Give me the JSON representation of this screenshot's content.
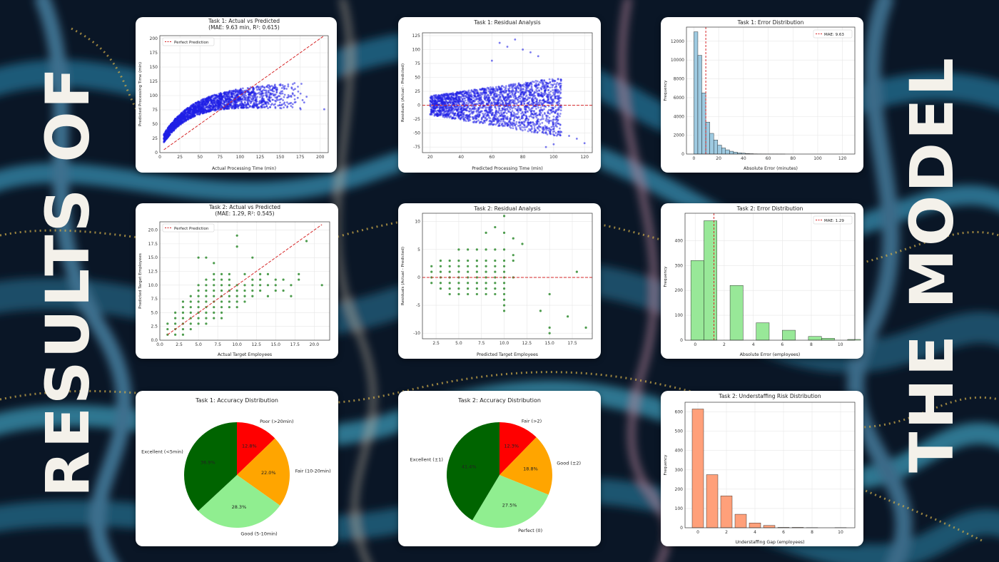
{
  "page": {
    "left_title": "RESULTS OF",
    "right_title": "THE MODEL"
  },
  "chart_data": [
    {
      "id": "t1-avp",
      "type": "scatter",
      "title": "Task 1: Actual vs Predicted",
      "subtitle": "(MAE: 9.63 min, R²: 0.615)",
      "xlabel": "Actual Processing Time (min)",
      "ylabel": "Predicted Processing Time (min)",
      "xlim": [
        0,
        210
      ],
      "ylim": [
        0,
        205
      ],
      "xticks": [
        0,
        25,
        50,
        75,
        100,
        125,
        150,
        175,
        200
      ],
      "yticks": [
        0,
        25,
        50,
        75,
        100,
        125,
        150,
        175,
        200
      ],
      "grid": true,
      "legend": "top-left",
      "color": "#1f1fe6",
      "series": [
        {
          "name": "Perfect Prediction",
          "type": "line",
          "style": "dashed",
          "color": "#d62728",
          "x": [
            5,
            205
          ],
          "y": [
            5,
            205
          ]
        }
      ],
      "cloud": {
        "x_min": 5,
        "x_max": 180,
        "y_base": 20,
        "y_top": 105,
        "spread": 12
      },
      "points": [
        [
          168,
          100
        ],
        [
          172,
          96
        ],
        [
          175,
          78
        ],
        [
          178,
          92
        ],
        [
          180,
          88
        ],
        [
          183,
          98
        ],
        [
          205,
          76
        ]
      ]
    },
    {
      "id": "t1-res",
      "type": "scatter",
      "title": "Task 1: Residual Analysis",
      "xlabel": "Predicted Processing Time (min)",
      "ylabel": "Residuals (Actual - Predicted)",
      "xlim": [
        15,
        125
      ],
      "ylim": [
        -85,
        130
      ],
      "xticks": [
        20,
        40,
        60,
        80,
        100,
        120
      ],
      "yticks": [
        -75,
        -50,
        -25,
        0,
        25,
        50,
        75,
        100,
        125
      ],
      "grid": true,
      "color": "#1f1fe6",
      "reference_line": {
        "y": 0,
        "color": "#d62728",
        "style": "dashed"
      },
      "cloud": {
        "x_min": 20,
        "x_max": 105,
        "res_min": -25,
        "res_max": 40
      },
      "points": [
        [
          65,
          112
        ],
        [
          70,
          105
        ],
        [
          75,
          118
        ],
        [
          80,
          100
        ],
        [
          85,
          95
        ],
        [
          90,
          88
        ],
        [
          60,
          80
        ],
        [
          110,
          -55
        ],
        [
          115,
          -60
        ],
        [
          100,
          -70
        ],
        [
          95,
          -75
        ],
        [
          120,
          -68
        ],
        [
          105,
          -48
        ]
      ]
    },
    {
      "id": "t1-err",
      "type": "bar",
      "title": "Task 1: Error Distribution",
      "xlabel": "Absolute Error (minutes)",
      "ylabel": "Frequency",
      "xlim": [
        -6,
        130
      ],
      "ylim": [
        0,
        13500
      ],
      "xticks": [
        0,
        20,
        40,
        60,
        80,
        100,
        120
      ],
      "yticks": [
        0,
        2000,
        4000,
        6000,
        8000,
        10000,
        12000
      ],
      "bin_start": 0,
      "bin_width": 3.2,
      "values": [
        13000,
        10500,
        6500,
        3400,
        2200,
        1500,
        950,
        650,
        450,
        300,
        200,
        130,
        90,
        60,
        40,
        25,
        15,
        10,
        6,
        4,
        3,
        2,
        1
      ],
      "color": "#9ecae1",
      "edge": "#111111",
      "mean_line": {
        "x": 9.63,
        "label": "MAE: 9.63",
        "color": "#d62728"
      },
      "legend": "top-right",
      "grid": true
    },
    {
      "id": "t2-avp",
      "type": "scatter",
      "title": "Task 2: Actual vs Predicted",
      "subtitle": "(MAE: 1.29, R²: 0.545)",
      "xlabel": "Actual Target Employees",
      "ylabel": "Predicted Target Employees",
      "xlim": [
        0,
        22
      ],
      "ylim": [
        0,
        21.5
      ],
      "xticks": [
        0.0,
        2.5,
        5.0,
        7.5,
        10.0,
        12.5,
        15.0,
        17.5,
        20.0
      ],
      "yticks": [
        0.0,
        2.5,
        5.0,
        7.5,
        10.0,
        12.5,
        15.0,
        17.5,
        20.0
      ],
      "tick_labels": [
        "0.0",
        "2.5",
        "5.0",
        "7.5",
        "10.0",
        "12.5",
        "15.0",
        "17.5",
        "20.0"
      ],
      "grid": true,
      "legend": "top-left",
      "color": "#2e8b2e",
      "series": [
        {
          "name": "Perfect Prediction",
          "type": "line",
          "style": "dashed",
          "color": "#d62728",
          "x": [
            1,
            21
          ],
          "y": [
            1,
            21
          ]
        }
      ],
      "points": [
        [
          1,
          1
        ],
        [
          1,
          2
        ],
        [
          2,
          1
        ],
        [
          2,
          2
        ],
        [
          2,
          3
        ],
        [
          1,
          3
        ],
        [
          3,
          2
        ],
        [
          3,
          3
        ],
        [
          2,
          4
        ],
        [
          3,
          4
        ],
        [
          4,
          3
        ],
        [
          3,
          5
        ],
        [
          4,
          4
        ],
        [
          4,
          5
        ],
        [
          5,
          4
        ],
        [
          4,
          6
        ],
        [
          5,
          5
        ],
        [
          5,
          6
        ],
        [
          6,
          5
        ],
        [
          5,
          7
        ],
        [
          6,
          6
        ],
        [
          6,
          7
        ],
        [
          7,
          6
        ],
        [
          7,
          7
        ],
        [
          6,
          8
        ],
        [
          7,
          8
        ],
        [
          8,
          7
        ],
        [
          8,
          8
        ],
        [
          7,
          9
        ],
        [
          8,
          9
        ],
        [
          9,
          8
        ],
        [
          9,
          9
        ],
        [
          8,
          10
        ],
        [
          9,
          10
        ],
        [
          10,
          9
        ],
        [
          10,
          10
        ],
        [
          10,
          8
        ],
        [
          11,
          9
        ],
        [
          11,
          10
        ],
        [
          12,
          10
        ],
        [
          12,
          11
        ],
        [
          13,
          10
        ],
        [
          13,
          11
        ],
        [
          14,
          10
        ],
        [
          15,
          11
        ],
        [
          14,
          8
        ],
        [
          16,
          9
        ],
        [
          17,
          8
        ],
        [
          18,
          12
        ],
        [
          19,
          18
        ],
        [
          21,
          10
        ],
        [
          5,
          15
        ],
        [
          6,
          15
        ],
        [
          7,
          14
        ],
        [
          10,
          17
        ],
        [
          10,
          19
        ],
        [
          12,
          15
        ],
        [
          3,
          6
        ],
        [
          4,
          7
        ],
        [
          5,
          8
        ],
        [
          6,
          9
        ],
        [
          7,
          10
        ],
        [
          2,
          5
        ],
        [
          3,
          7
        ],
        [
          4,
          8
        ],
        [
          5,
          9
        ],
        [
          6,
          10
        ],
        [
          7,
          11
        ],
        [
          8,
          11
        ],
        [
          9,
          12
        ],
        [
          11,
          12
        ],
        [
          12,
          9
        ],
        [
          13,
          9
        ],
        [
          6,
          4
        ],
        [
          7,
          5
        ],
        [
          8,
          6
        ],
        [
          9,
          7
        ],
        [
          10,
          7
        ],
        [
          11,
          8
        ],
        [
          12,
          8
        ],
        [
          8,
          5
        ],
        [
          9,
          6
        ],
        [
          10,
          6
        ],
        [
          11,
          7
        ],
        [
          3,
          1
        ],
        [
          4,
          2
        ],
        [
          5,
          3
        ],
        [
          6,
          3
        ],
        [
          7,
          4
        ],
        [
          8,
          4
        ],
        [
          5,
          10
        ],
        [
          6,
          11
        ],
        [
          7,
          12
        ],
        [
          8,
          12
        ],
        [
          9,
          11
        ],
        [
          15,
          10
        ],
        [
          16,
          11
        ],
        [
          15,
          9
        ],
        [
          17,
          10
        ],
        [
          18,
          11
        ],
        [
          13,
          12
        ],
        [
          14,
          12
        ]
      ]
    },
    {
      "id": "t2-res",
      "type": "scatter",
      "title": "Task 2: Residual Analysis",
      "xlabel": "Predicted Target Employees",
      "ylabel": "Residuals (Actual - Predicted)",
      "xlim": [
        1,
        19.7
      ],
      "ylim": [
        -11,
        11.5
      ],
      "xticks": [
        2.5,
        5.0,
        7.5,
        10.0,
        12.5,
        15.0,
        17.5
      ],
      "tick_labels_x": [
        "2.5",
        "5.0",
        "7.5",
        "10.0",
        "12.5",
        "15.0",
        "17.5"
      ],
      "yticks": [
        -10,
        -5,
        0,
        5,
        10
      ],
      "grid": true,
      "color": "#2e8b2e",
      "reference_line": {
        "y": 0,
        "color": "#d62728",
        "style": "dashed"
      },
      "points": [
        [
          10,
          11
        ],
        [
          9,
          9
        ],
        [
          8,
          8
        ],
        [
          10,
          8
        ],
        [
          11,
          7
        ],
        [
          12,
          6
        ],
        [
          5,
          5
        ],
        [
          6,
          5
        ],
        [
          7,
          5
        ],
        [
          8,
          5
        ],
        [
          9,
          5
        ],
        [
          10,
          5
        ],
        [
          11,
          4
        ],
        [
          3,
          3
        ],
        [
          4,
          3
        ],
        [
          5,
          3
        ],
        [
          6,
          3
        ],
        [
          7,
          3
        ],
        [
          8,
          3
        ],
        [
          9,
          3
        ],
        [
          10,
          3
        ],
        [
          11,
          3
        ],
        [
          2,
          2
        ],
        [
          3,
          2
        ],
        [
          4,
          2
        ],
        [
          5,
          2
        ],
        [
          6,
          2
        ],
        [
          7,
          2
        ],
        [
          8,
          2
        ],
        [
          9,
          2
        ],
        [
          10,
          2
        ],
        [
          2,
          1
        ],
        [
          3,
          1
        ],
        [
          4,
          1
        ],
        [
          5,
          1
        ],
        [
          6,
          1
        ],
        [
          7,
          1
        ],
        [
          8,
          1
        ],
        [
          9,
          1
        ],
        [
          10,
          1
        ],
        [
          2,
          0
        ],
        [
          3,
          0
        ],
        [
          4,
          0
        ],
        [
          5,
          0
        ],
        [
          6,
          0
        ],
        [
          7,
          0
        ],
        [
          8,
          0
        ],
        [
          9,
          0
        ],
        [
          10,
          0
        ],
        [
          11,
          0
        ],
        [
          2,
          -1
        ],
        [
          3,
          -1
        ],
        [
          4,
          -1
        ],
        [
          5,
          -1
        ],
        [
          6,
          -1
        ],
        [
          7,
          -1
        ],
        [
          8,
          -1
        ],
        [
          9,
          -1
        ],
        [
          10,
          -1
        ],
        [
          3,
          -2
        ],
        [
          4,
          -2
        ],
        [
          5,
          -2
        ],
        [
          6,
          -2
        ],
        [
          7,
          -2
        ],
        [
          8,
          -2
        ],
        [
          9,
          -2
        ],
        [
          10,
          -2
        ],
        [
          4,
          -3
        ],
        [
          5,
          -3
        ],
        [
          6,
          -3
        ],
        [
          7,
          -3
        ],
        [
          8,
          -3
        ],
        [
          9,
          -3
        ],
        [
          10,
          -3
        ],
        [
          10,
          -4
        ],
        [
          10,
          -5
        ],
        [
          10,
          -6
        ],
        [
          14,
          -6
        ],
        [
          15,
          -3
        ],
        [
          15,
          -9
        ],
        [
          15,
          -10
        ],
        [
          17,
          -7
        ],
        [
          19,
          -9
        ],
        [
          18,
          1
        ]
      ]
    },
    {
      "id": "t2-err",
      "type": "bar",
      "title": "Task 2: Error Distribution",
      "xlabel": "Absolute Error (employees)",
      "ylabel": "Frequency",
      "xlim": [
        -0.7,
        11
      ],
      "ylim": [
        0,
        510
      ],
      "xticks": [
        0,
        2,
        4,
        6,
        8,
        10
      ],
      "yticks": [
        0,
        100,
        200,
        300,
        400
      ],
      "bin_start": -0.3,
      "bin_width": 0.9,
      "values": [
        320,
        480,
        0,
        220,
        0,
        70,
        0,
        40,
        0,
        15,
        8,
        0,
        3,
        0,
        0,
        0,
        0,
        1,
        0,
        0,
        1
      ],
      "color": "#98e898",
      "edge": "#111111",
      "mean_line": {
        "x": 1.29,
        "label": "MAE: 1.29",
        "color": "#d62728"
      },
      "legend": "top-right",
      "grid": true
    },
    {
      "id": "t1-acc",
      "type": "pie",
      "title": "Task 1: Accuracy Distribution",
      "slices": [
        {
          "label": "Poor (>20min)",
          "value": 12.8,
          "pct": "12.8%",
          "color": "#ff0000"
        },
        {
          "label": "Fair (10-20min)",
          "value": 22.0,
          "pct": "22.0%",
          "color": "#ffa500"
        },
        {
          "label": "Good (5-10min)",
          "value": 28.3,
          "pct": "28.3%",
          "color": "#90ee90"
        },
        {
          "label": "Excellent (<5min)",
          "value": 36.9,
          "pct": "36.9%",
          "color": "#006400"
        }
      ]
    },
    {
      "id": "t2-acc",
      "type": "pie",
      "title": "Task 2: Accuracy Distribution",
      "slices": [
        {
          "label": "Fair (>2)",
          "value": 12.3,
          "pct": "12.3%",
          "color": "#ff0000"
        },
        {
          "label": "Good (±2)",
          "value": 18.8,
          "pct": "18.8%",
          "color": "#ffa500"
        },
        {
          "label": "Perfect (0)",
          "value": 27.5,
          "pct": "27.5%",
          "color": "#90ee90"
        },
        {
          "label": "Excellent (±1)",
          "value": 41.4,
          "pct": "41.4%",
          "color": "#006400"
        }
      ]
    },
    {
      "id": "t2-risk",
      "type": "bar",
      "title": "Task 2: Understaffing Risk Distribution",
      "xlabel": "Understaffing Gap (employees)",
      "ylabel": "Frequency",
      "xlim": [
        -0.9,
        11
      ],
      "ylim": [
        0,
        650
      ],
      "xticks": [
        0,
        2,
        4,
        6,
        8,
        10
      ],
      "yticks": [
        0,
        100,
        200,
        300,
        400,
        500,
        600
      ],
      "bin_start": -0.4,
      "bin_width": 0.8,
      "bins": [
        0,
        1,
        2,
        3,
        4,
        5,
        6,
        7,
        8,
        9,
        10
      ],
      "values": [
        615,
        275,
        165,
        70,
        25,
        12,
        2,
        2,
        1,
        0,
        1
      ],
      "color": "#ffa07a",
      "edge": "#111111",
      "grid": true
    }
  ]
}
